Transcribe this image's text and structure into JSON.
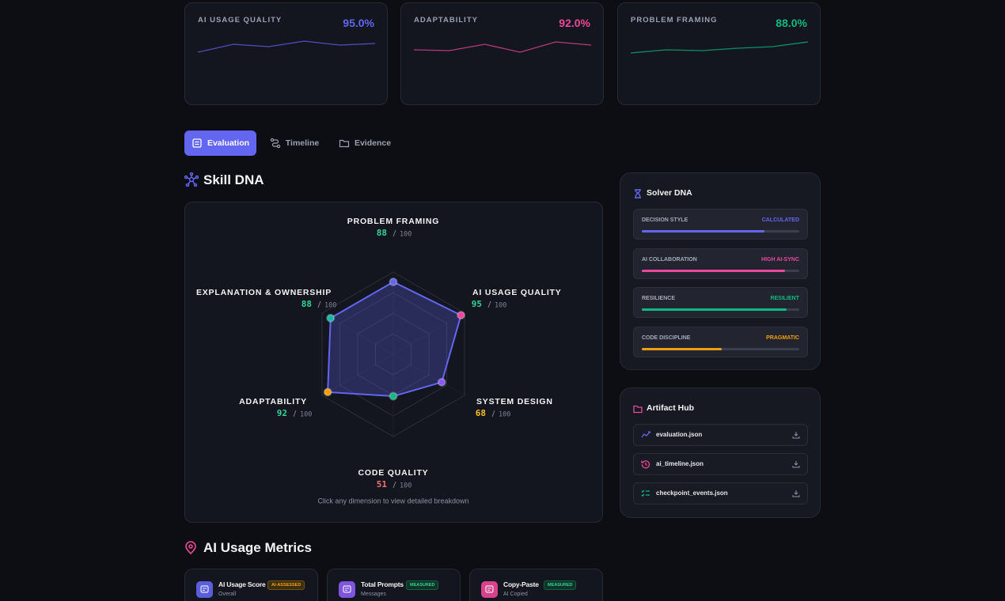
{
  "metric_cards": [
    {
      "label": "AI USAGE QUALITY",
      "value": "95.0%",
      "color": "#6366f1",
      "ylim": [
        60,
        100
      ],
      "trend": [
        78,
        88,
        85,
        92,
        87,
        89
      ]
    },
    {
      "label": "ADAPTABILITY",
      "value": "92.0%",
      "color": "#ec4899",
      "ylim": [
        60,
        100
      ],
      "trend": [
        81,
        80,
        88,
        78,
        91,
        87
      ]
    },
    {
      "label": "PROBLEM FRAMING",
      "value": "88.0%",
      "color": "#10b981",
      "ylim": [
        60,
        100
      ],
      "trend": [
        77,
        81,
        80,
        83,
        85,
        91
      ]
    }
  ],
  "tabs": [
    {
      "label": "Evaluation",
      "active": true
    },
    {
      "label": "Timeline",
      "active": false
    },
    {
      "label": "Evidence",
      "active": false
    }
  ],
  "skill_dna": {
    "title": "Skill DNA",
    "max": 100,
    "hint": "Click any dimension to view detailed breakdown",
    "dimensions": [
      {
        "label": "PROBLEM FRAMING",
        "score": 88,
        "score_color": "#34d399",
        "point_color": "#6366f1"
      },
      {
        "label": "AI USAGE QUALITY",
        "score": 95,
        "score_color": "#34d399",
        "point_color": "#ec4899"
      },
      {
        "label": "SYSTEM DESIGN",
        "score": 68,
        "score_color": "#fbbf24",
        "point_color": "#8b5cf6"
      },
      {
        "label": "CODE QUALITY",
        "score": 51,
        "score_color": "#f87171",
        "point_color": "#10b981"
      },
      {
        "label": "ADAPTABILITY",
        "score": 92,
        "score_color": "#34d399",
        "point_color": "#f59e0b"
      },
      {
        "label": "EXPLANATION & OWNERSHIP",
        "score": 88,
        "score_color": "#34d399",
        "point_color": "#14b8a6"
      }
    ]
  },
  "solver_dna": {
    "title": "Solver DNA",
    "traits": [
      {
        "label": "DECISION STYLE",
        "value": "CALCULATED",
        "color": "#6366f1",
        "level": 78
      },
      {
        "label": "AI COLLABORATION",
        "value": "HIGH AI-SYNC",
        "color": "#ec4899",
        "level": 91
      },
      {
        "label": "RESILIENCE",
        "value": "RESILIENT",
        "color": "#10b981",
        "level": 92
      },
      {
        "label": "CODE DISCIPLINE",
        "value": "PRAGMATIC",
        "color": "#f59e0b",
        "level": 51
      }
    ]
  },
  "artifact_hub": {
    "title": "Artifact Hub",
    "files": [
      {
        "name": "evaluation.json",
        "color": "#6366f1"
      },
      {
        "name": "ai_timeline.json",
        "color": "#ec4899"
      },
      {
        "name": "checkpoint_events.json",
        "color": "#10b981"
      }
    ]
  },
  "ai_usage_metrics": {
    "title": "AI Usage Metrics",
    "cards": [
      {
        "title": "AI Usage Score",
        "badge": "AI-ASSESSED",
        "subtitle": "Overall",
        "color": "#6366f1"
      },
      {
        "title": "Total Prompts",
        "badge": "MEASURED",
        "subtitle": "Messages",
        "color": "#8b5cf6"
      },
      {
        "title": "Copy-Paste",
        "badge": "MEASURED",
        "subtitle": "AI Copied",
        "color": "#ec4899"
      }
    ]
  }
}
